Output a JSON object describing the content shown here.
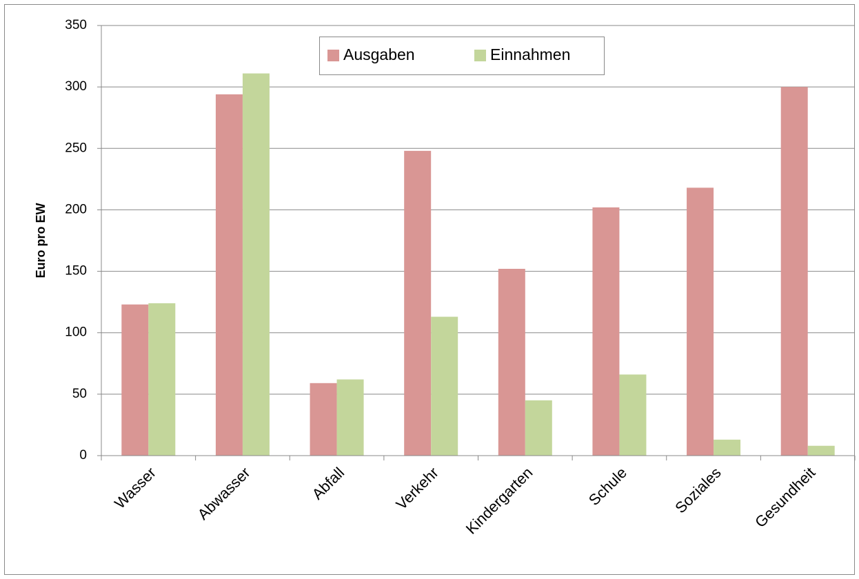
{
  "chart_data": {
    "type": "bar",
    "y_label": "Euro pro EW",
    "categories": [
      "Wasser",
      "Abwasser",
      "Abfall",
      "Verkehr",
      "Kindergarten",
      "Schule",
      "Soziales",
      "Gesundheit"
    ],
    "series": [
      {
        "name": "Ausgaben",
        "color": "#d99694",
        "values": [
          123,
          294,
          59,
          248,
          152,
          202,
          218,
          300
        ]
      },
      {
        "name": "Einnahmen",
        "color": "#c3d69b",
        "values": [
          124,
          311,
          62,
          113,
          45,
          66,
          13,
          8
        ]
      }
    ],
    "ylim": [
      0,
      350
    ],
    "yticks": [
      0,
      50,
      100,
      150,
      200,
      250,
      300,
      350
    ],
    "grid": true,
    "legend": "top"
  }
}
